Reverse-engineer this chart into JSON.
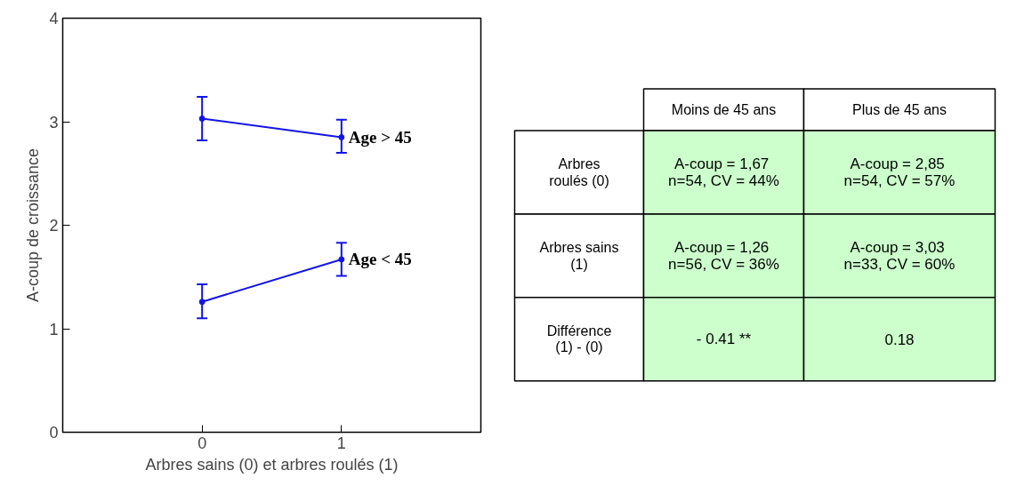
{
  "chart_data": [
    {
      "type": "line",
      "xlabel": "Arbres sains (0) et arbres roulés (1)",
      "ylabel": "A-coup de croissance",
      "x": [
        0,
        1
      ],
      "xlim": [
        -1,
        2
      ],
      "xticks": [
        0,
        1
      ],
      "ylim": [
        0,
        4
      ],
      "yticks": [
        0,
        1,
        2,
        3,
        4
      ],
      "grid": false,
      "legend": false,
      "marker": "circle",
      "line_style": "solid",
      "series": [
        {
          "name": "Age > 45",
          "color": "#1414e6",
          "values": [
            3.03,
            2.85
          ],
          "errors": [
            [
              2.82,
              3.24
            ],
            [
              2.7,
              3.02
            ]
          ]
        },
        {
          "name": "Age < 45",
          "color": "#1414e6",
          "values": [
            1.26,
            1.67
          ],
          "errors": [
            [
              1.1,
              1.43
            ],
            [
              1.51,
              1.83
            ]
          ]
        }
      ]
    },
    {
      "type": "other",
      "categories": [
        "Moins de 45 ans",
        "Plus de 45 ans"
      ],
      "y_categories": [
        "Arbres\nroulés (0)",
        "Arbres sains\n(1)",
        "Différence\n(1) - (0)"
      ],
      "color": "#ccffcc",
      "cell_labels": [
        [
          "A-coup  = 1,67\nn=54, CV = 44%",
          "A-coup  = 2,85\nn=54, CV = 57%"
        ],
        [
          "A-coup  = 1,26\nn=56, CV = 36%",
          "A-coup  = 3,03\nn=33, CV = 60%"
        ],
        [
          "- 0.41 **",
          "0.18"
        ]
      ]
    }
  ]
}
